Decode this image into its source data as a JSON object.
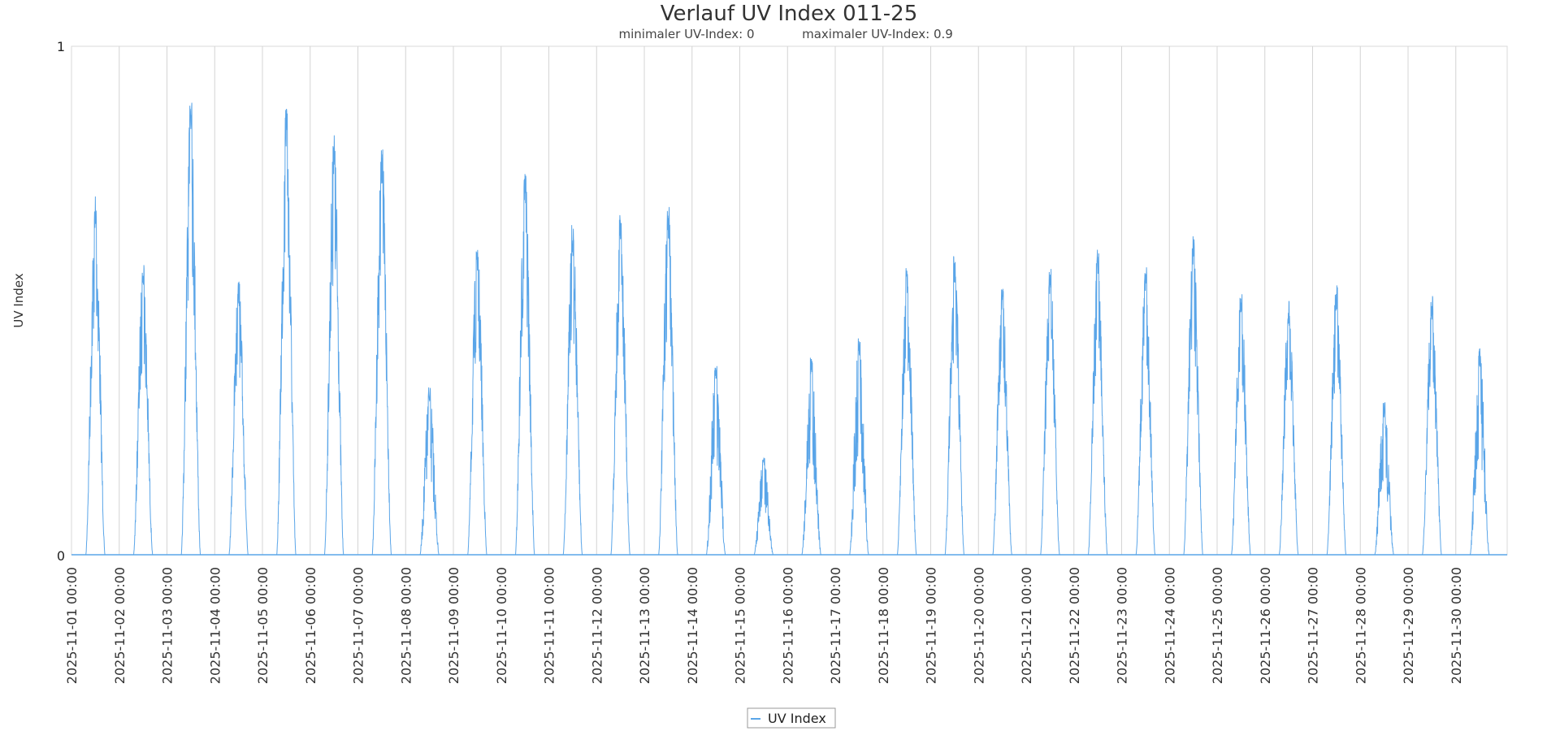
{
  "chart_data": {
    "type": "line",
    "title": "Verlauf UV Index 011-25",
    "subtitle_min": "minimaler UV-Index: 0",
    "subtitle_max": "maximaler UV-Index: 0.9",
    "xlabel": "",
    "ylabel": "UV Index",
    "ylim": [
      0,
      1
    ],
    "y_ticks": [
      "0",
      "1"
    ],
    "x_tick_labels": [
      "2025-11-01 00:00",
      "2025-11-02 00:00",
      "2025-11-03 00:00",
      "2025-11-04 00:00",
      "2025-11-05 00:00",
      "2025-11-06 00:00",
      "2025-11-07 00:00",
      "2025-11-08 00:00",
      "2025-11-09 00:00",
      "2025-11-10 00:00",
      "2025-11-11 00:00",
      "2025-11-12 00:00",
      "2025-11-13 00:00",
      "2025-11-14 00:00",
      "2025-11-15 00:00",
      "2025-11-16 00:00",
      "2025-11-17 00:00",
      "2025-11-18 00:00",
      "2025-11-19 00:00",
      "2025-11-20 00:00",
      "2025-11-21 00:00",
      "2025-11-22 00:00",
      "2025-11-23 00:00",
      "2025-11-24 00:00",
      "2025-11-25 00:00",
      "2025-11-26 00:00",
      "2025-11-27 00:00",
      "2025-11-28 00:00",
      "2025-11-29 00:00",
      "2025-11-30 00:00"
    ],
    "grid": "vertical",
    "legend_position": "bottom-center",
    "series": [
      {
        "name": "UV Index",
        "color": "#5aa5e8",
        "daily_peaks": [
          0.71,
          0.57,
          0.89,
          0.54,
          0.89,
          0.83,
          0.81,
          0.33,
          0.62,
          0.76,
          0.65,
          0.68,
          0.69,
          0.38,
          0.19,
          0.39,
          0.43,
          0.57,
          0.59,
          0.53,
          0.57,
          0.6,
          0.57,
          0.63,
          0.52,
          0.5,
          0.53,
          0.3,
          0.51,
          0.41
        ]
      }
    ]
  }
}
